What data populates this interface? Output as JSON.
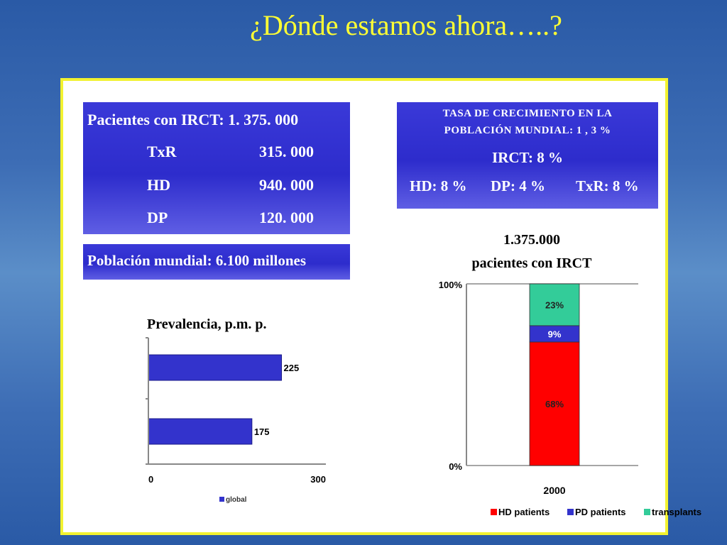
{
  "slide": {
    "title": "¿Dónde estamos ahora…..?"
  },
  "patients_box": {
    "heading": "Pacientes con IRCT: 1. 375. 000",
    "rows": [
      {
        "label": "TxR",
        "value": "315. 000"
      },
      {
        "label": "HD",
        "value": "940. 000"
      },
      {
        "label": "DP",
        "value": "120. 000"
      }
    ]
  },
  "population_box": {
    "text": "Población mundial: 6.100  millones"
  },
  "growth_box": {
    "line1": "TASA DE CRECIMIENTO EN LA",
    "line2": "POBLACIÓN MUNDIAL: 1 , 3 %",
    "irct": "IRCT: 8 %",
    "hd": "HD: 8 %",
    "dp": "DP: 4 %",
    "txr": "TxR: 8 %"
  },
  "colors": {
    "bar": "#3333cc",
    "hd": "#ff0000",
    "pd": "#3333cc",
    "tx": "#33cc99",
    "box": "#2d2ccc",
    "title": "#ffff33"
  },
  "chart_data": [
    {
      "type": "bar",
      "orientation": "horizontal",
      "title": "Prevalencia, p.m. p.",
      "categories": [
        "",
        ""
      ],
      "values": [
        225,
        175
      ],
      "xlim": [
        0,
        300
      ],
      "xticks": [
        "0",
        "300"
      ],
      "legend": [
        "global"
      ],
      "legend_placement": "bottom"
    },
    {
      "type": "bar",
      "stacked": true,
      "title": "1.375.000",
      "subtitle": "pacientes  con IRCT",
      "categories": [
        "2000"
      ],
      "series": [
        {
          "name": "HD patients",
          "values": [
            68
          ],
          "label": "68%"
        },
        {
          "name": "PD patients",
          "values": [
            9
          ],
          "label": "9%"
        },
        {
          "name": "transplants",
          "values": [
            23
          ],
          "label": "23%"
        }
      ],
      "ylim": [
        0,
        100
      ],
      "yticks": [
        "0%",
        "100%"
      ],
      "legend_placement": "bottom"
    }
  ]
}
